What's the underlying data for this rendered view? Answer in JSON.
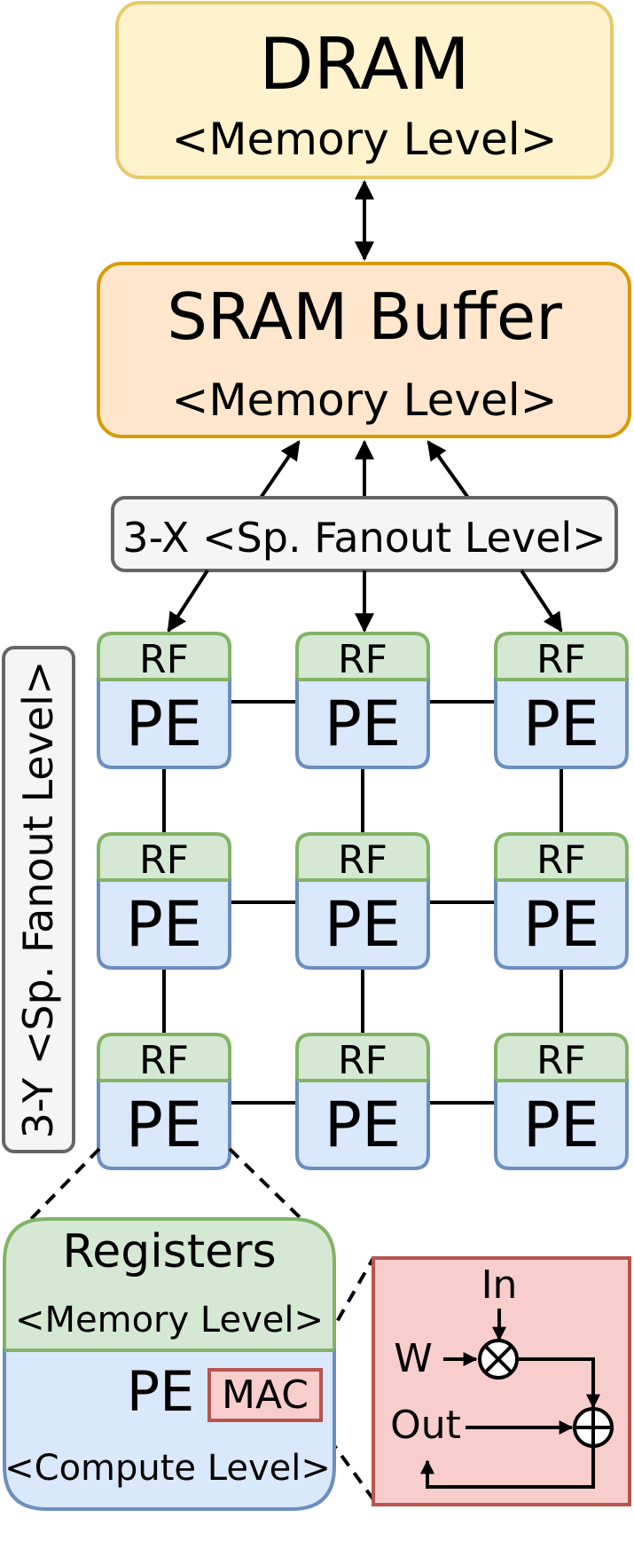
{
  "dram": {
    "title": "DRAM",
    "subtitle": "<Memory Level>"
  },
  "sram": {
    "title": "SRAM Buffer",
    "subtitle": "<Memory Level>"
  },
  "x_fanout": {
    "label": "3-X <Sp. Fanout Level>"
  },
  "y_fanout": {
    "label": "3-Y <Sp. Fanout Level>"
  },
  "pe_grid": {
    "rf_label": "RF",
    "pe_label": "PE",
    "rows": 3,
    "cols": 3
  },
  "detail": {
    "registers_title": "Registers",
    "registers_subtitle": "<Memory Level>",
    "pe_label": "PE",
    "mac_label": "MAC",
    "compute_subtitle": "<Compute Level>"
  },
  "mac_detail": {
    "in_label": "In",
    "w_label": "W",
    "out_label": "Out"
  },
  "colors": {
    "dram_fill": "#fff2cc",
    "dram_stroke": "#e6c96a",
    "sram_fill": "#ffe6cc",
    "sram_stroke": "#d79b00",
    "fanout_fill": "#f5f5f5",
    "fanout_stroke": "#666666",
    "rf_fill": "#d5e8d4",
    "rf_stroke": "#82b366",
    "pe_fill": "#dae8fc",
    "pe_stroke": "#6c8ebf",
    "mac_fill": "#f8cecc",
    "mac_stroke": "#b85450"
  }
}
